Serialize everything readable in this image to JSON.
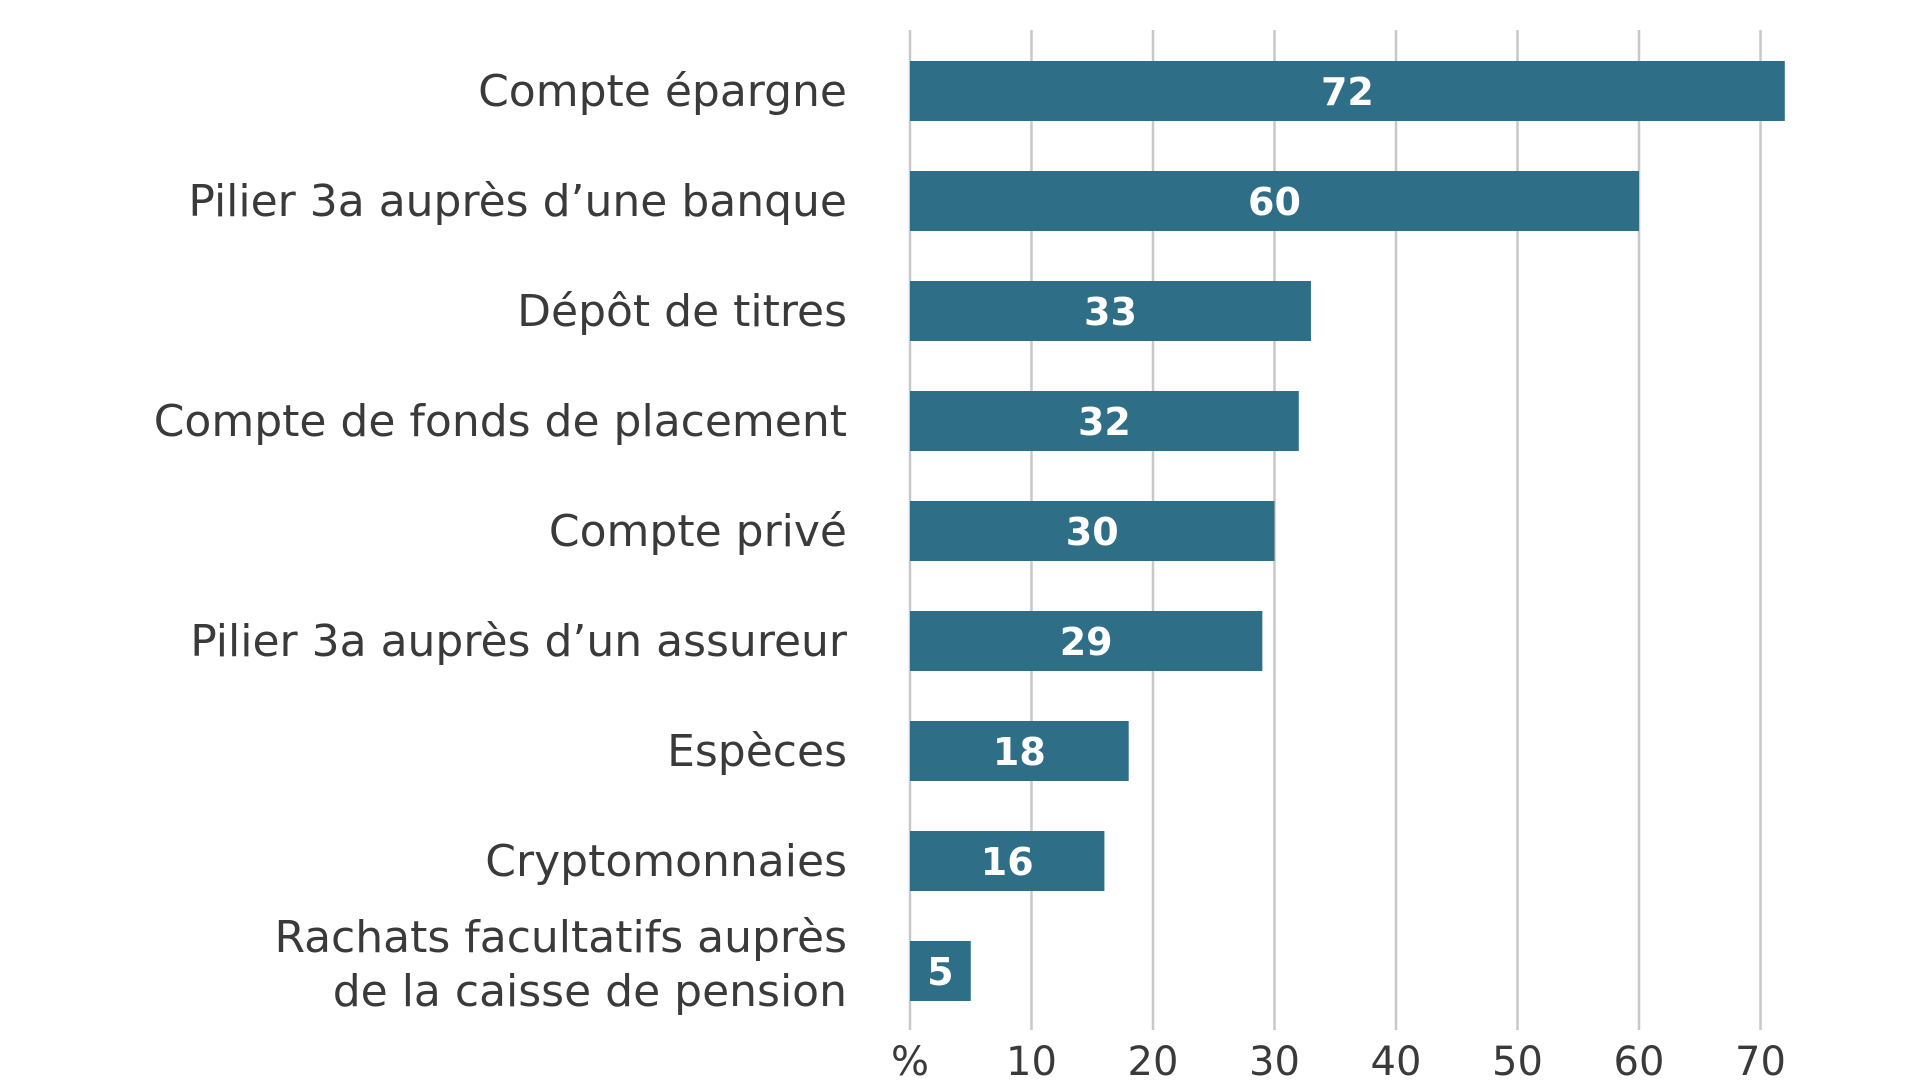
{
  "chart_data": {
    "type": "bar",
    "orientation": "horizontal",
    "categories": [
      [
        "Compte épargne"
      ],
      [
        "Pilier 3a auprès d’une banque"
      ],
      [
        "Dépôt de titres"
      ],
      [
        "Compte de fonds de placement"
      ],
      [
        "Compte privé"
      ],
      [
        "Pilier 3a auprès d’un assureur"
      ],
      [
        "Espèces"
      ],
      [
        "Cryptomonnaies"
      ],
      [
        "Rachats facultatifs auprès",
        "de la caisse de pension"
      ]
    ],
    "values": [
      72,
      60,
      33,
      32,
      30,
      29,
      18,
      16,
      5
    ],
    "title": "",
    "xlabel": "",
    "ylabel": "",
    "x_ticks": [
      "%",
      "10",
      "20",
      "30",
      "40",
      "50",
      "60",
      "70"
    ],
    "xlim": [
      0,
      75
    ],
    "grid": "vertical",
    "bar_color": "#2e6f87",
    "grid_color": "#c8c8c8",
    "value_label_color": "#ffffff",
    "text_color": "#3a3a3a"
  }
}
